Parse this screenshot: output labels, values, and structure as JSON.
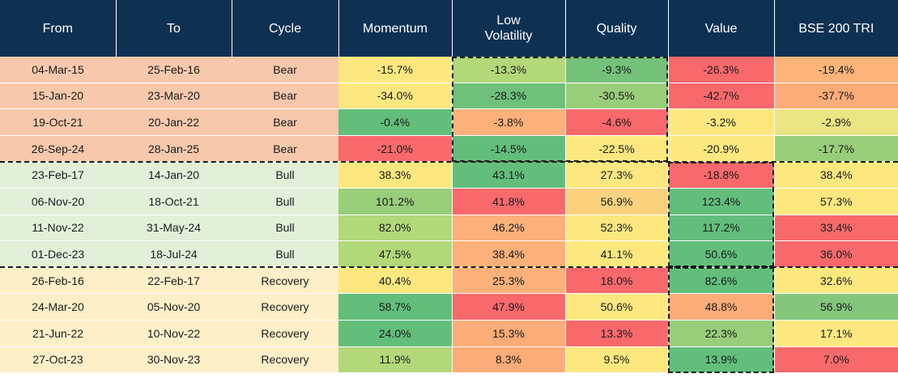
{
  "chart_data": {
    "type": "table",
    "columns": [
      "From",
      "To",
      "Cycle",
      "Momentum",
      "Low\nVolatility",
      "Quality",
      "Value",
      "BSE 200 TRI"
    ],
    "rows": [
      {
        "from": "04-Mar-15",
        "to": "25-Feb-16",
        "cycle": "Bear",
        "values": [
          "-15.7%",
          "-13.3%",
          "-9.3%",
          "-26.3%",
          "-19.4%"
        ],
        "colors": [
          "#fde880",
          "#b2d87a",
          "#74c27a",
          "#f8696b",
          "#fcb47a"
        ]
      },
      {
        "from": "15-Jan-20",
        "to": "23-Mar-20",
        "cycle": "Bear",
        "values": [
          "-34.0%",
          "-28.3%",
          "-30.5%",
          "-42.7%",
          "-37.7%"
        ],
        "colors": [
          "#fde880",
          "#6ec07a",
          "#98ce7a",
          "#f8696b",
          "#fcac78"
        ]
      },
      {
        "from": "19-Oct-21",
        "to": "20-Jan-22",
        "cycle": "Bear",
        "values": [
          "-0.4%",
          "-3.8%",
          "-4.6%",
          "-3.2%",
          "-2.9%"
        ],
        "colors": [
          "#63be7b",
          "#fcb07a",
          "#f8696b",
          "#fde880",
          "#e9e583"
        ]
      },
      {
        "from": "26-Sep-24",
        "to": "28-Jan-25",
        "cycle": "Bear",
        "values": [
          "-21.0%",
          "-14.5%",
          "-22.5%",
          "-20.9%",
          "-17.7%"
        ],
        "colors": [
          "#f8696b",
          "#63be7b",
          "#fde880",
          "#fde880",
          "#98ce7a"
        ]
      },
      {
        "from": "23-Feb-17",
        "to": "14-Jan-20",
        "cycle": "Bull",
        "values": [
          "38.3%",
          "43.1%",
          "27.3%",
          "-18.8%",
          "38.4%"
        ],
        "colors": [
          "#fde880",
          "#63be7b",
          "#fde880",
          "#f8696b",
          "#fde880"
        ]
      },
      {
        "from": "06-Nov-20",
        "to": "18-Oct-21",
        "cycle": "Bull",
        "values": [
          "101.2%",
          "41.8%",
          "56.9%",
          "123.4%",
          "57.3%"
        ],
        "colors": [
          "#98ce7a",
          "#f8696b",
          "#fcd27f",
          "#63be7b",
          "#fde880"
        ]
      },
      {
        "from": "11-Nov-22",
        "to": "31-May-24",
        "cycle": "Bull",
        "values": [
          "82.0%",
          "46.2%",
          "52.3%",
          "117.2%",
          "33.4%"
        ],
        "colors": [
          "#b2d87a",
          "#fcb07a",
          "#fde880",
          "#63be7b",
          "#f8696b"
        ]
      },
      {
        "from": "01-Dec-23",
        "to": "18-Jul-24",
        "cycle": "Bull",
        "values": [
          "47.5%",
          "38.4%",
          "41.1%",
          "50.6%",
          "36.0%"
        ],
        "colors": [
          "#b2d87a",
          "#fcb07a",
          "#fde880",
          "#63be7b",
          "#f8696b"
        ]
      },
      {
        "from": "26-Feb-16",
        "to": "22-Feb-17",
        "cycle": "Recovery",
        "values": [
          "40.4%",
          "25.3%",
          "18.0%",
          "82.6%",
          "32.6%"
        ],
        "colors": [
          "#fde880",
          "#fcb07a",
          "#f8696b",
          "#63be7b",
          "#fde880"
        ]
      },
      {
        "from": "24-Mar-20",
        "to": "05-Nov-20",
        "cycle": "Recovery",
        "values": [
          "58.7%",
          "47.9%",
          "50.6%",
          "48.8%",
          "56.9%"
        ],
        "colors": [
          "#63be7b",
          "#f8696b",
          "#fde880",
          "#fcac78",
          "#82c77b"
        ]
      },
      {
        "from": "21-Jun-22",
        "to": "10-Nov-22",
        "cycle": "Recovery",
        "values": [
          "24.0%",
          "15.3%",
          "13.3%",
          "22.3%",
          "17.1%"
        ],
        "colors": [
          "#63be7b",
          "#fcac78",
          "#f8696b",
          "#98ce7a",
          "#fde880"
        ]
      },
      {
        "from": "27-Oct-23",
        "to": "30-Nov-23",
        "cycle": "Recovery",
        "values": [
          "11.9%",
          "8.3%",
          "9.5%",
          "13.9%",
          "7.0%"
        ],
        "colors": [
          "#b2d87a",
          "#fcac78",
          "#fde880",
          "#63be7b",
          "#f8696b"
        ]
      }
    ],
    "highlights": [
      {
        "cycle": "Bear",
        "columns": [
          "Low\nVolatility",
          "Quality"
        ]
      },
      {
        "cycle": "Bull",
        "columns": [
          "Value"
        ]
      },
      {
        "cycle": "Recovery",
        "columns": [
          "Value"
        ]
      }
    ]
  }
}
